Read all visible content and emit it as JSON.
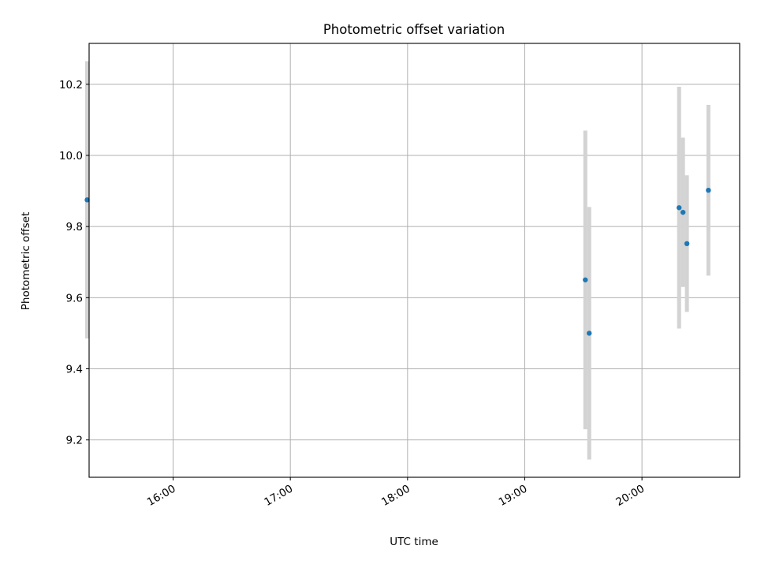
{
  "chart_data": {
    "type": "scatter",
    "title": "Photometric offset variation",
    "xlabel": "UTC time",
    "ylabel": "Photometric offset",
    "xlim": [
      "15:17",
      "20:50"
    ],
    "ylim": [
      9.095,
      10.315
    ],
    "x_ticks": [
      "16:00",
      "17:00",
      "18:00",
      "19:00",
      "20:00"
    ],
    "y_ticks": [
      "9.2",
      "9.4",
      "9.6",
      "9.8",
      "10.0",
      "10.2"
    ],
    "grid": true,
    "points": [
      {
        "x": "15:16",
        "y": 9.875,
        "yerr": 0.39
      },
      {
        "x": "19:31",
        "y": 9.65,
        "yerr": 0.42
      },
      {
        "x": "19:33",
        "y": 9.5,
        "yerr": 0.355
      },
      {
        "x": "20:19",
        "y": 9.853,
        "yerr": 0.34
      },
      {
        "x": "20:21",
        "y": 9.84,
        "yerr": 0.21
      },
      {
        "x": "20:23",
        "y": 9.752,
        "yerr": 0.192
      },
      {
        "x": "20:34",
        "y": 9.902,
        "yerr": 0.24
      }
    ],
    "colors": {
      "point": "#1f77b4",
      "errorbar": "#d3d3d3",
      "grid": "#b0b0b0"
    }
  }
}
